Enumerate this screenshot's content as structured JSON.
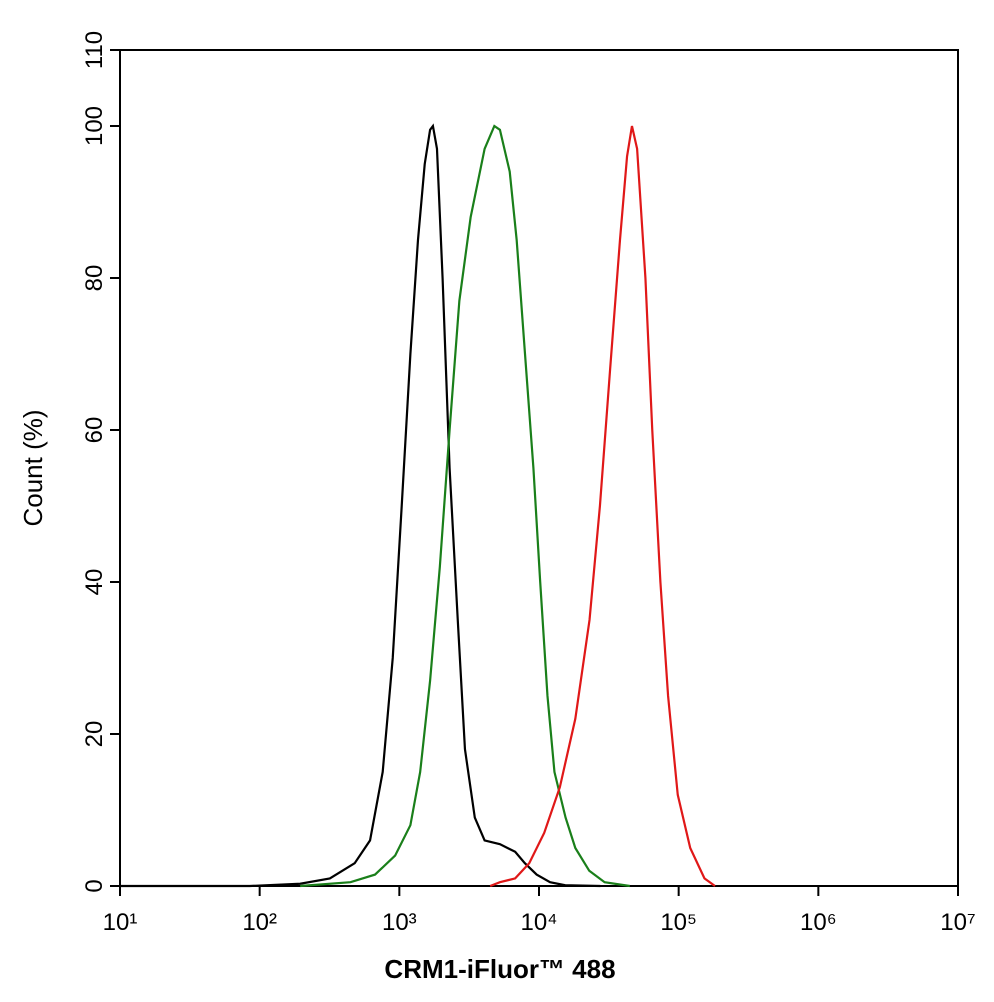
{
  "chart_data": {
    "type": "line",
    "x_label": "CRM1-iFluor™ 488",
    "y_label": "Count  (%)",
    "xscale": "log",
    "xlim": [
      10,
      10000000
    ],
    "ylim": [
      0,
      110
    ],
    "xticks": [
      {
        "value": 10,
        "label": "10¹"
      },
      {
        "value": 100,
        "label": "10²"
      },
      {
        "value": 1000,
        "label": "10³"
      },
      {
        "value": 10000,
        "label": "10⁴"
      },
      {
        "value": 100000,
        "label": "10⁵"
      },
      {
        "value": 1000000,
        "label": "10⁶"
      },
      {
        "value": 10000000,
        "label": "10⁷"
      }
    ],
    "yticks": [
      0,
      20,
      40,
      60,
      80,
      100,
      110
    ],
    "series": [
      {
        "color": "#000000",
        "x": [
          10,
          85,
          195,
          318,
          479,
          617,
          760,
          897,
          1040,
          1200,
          1360,
          1520,
          1660,
          1740,
          1860,
          2040,
          2290,
          2620,
          2950,
          3470,
          4080,
          5250,
          6750,
          7920,
          9620,
          12000,
          15400,
          27500
        ],
        "values": [
          0,
          0,
          0.3,
          1,
          3,
          6,
          15,
          30,
          50,
          70,
          85,
          95,
          99.5,
          100,
          97,
          80,
          55,
          35,
          18,
          9,
          6,
          5.5,
          4.5,
          3,
          1.5,
          0.5,
          0.1,
          0
        ]
      },
      {
        "color": "#1a7f1a",
        "x": [
          195,
          447,
          670,
          933,
          1200,
          1410,
          1660,
          1950,
          2290,
          2690,
          3240,
          4080,
          4790,
          5250,
          6170,
          6920,
          7940,
          9120,
          10200,
          11500,
          12900,
          15500,
          18200,
          22900,
          29500,
          44700
        ],
        "values": [
          0,
          0.5,
          1.5,
          4,
          8,
          15,
          27,
          42,
          60,
          77,
          88,
          97,
          100,
          99.5,
          94,
          85,
          70,
          55,
          40,
          25,
          15,
          9,
          5,
          2,
          0.5,
          0
        ]
      },
      {
        "color": "#e01818",
        "x": [
          4470,
          5250,
          6750,
          8510,
          10900,
          14100,
          18200,
          23000,
          27300,
          32300,
          38000,
          42700,
          46300,
          50400,
          57800,
          64700,
          74000,
          84000,
          98500,
          121000,
          153000,
          182000
        ],
        "values": [
          0,
          0.5,
          1,
          3,
          7,
          13,
          22,
          35,
          50,
          68,
          85,
          96,
          100,
          97,
          80,
          60,
          40,
          25,
          12,
          5,
          1,
          0
        ]
      }
    ]
  }
}
